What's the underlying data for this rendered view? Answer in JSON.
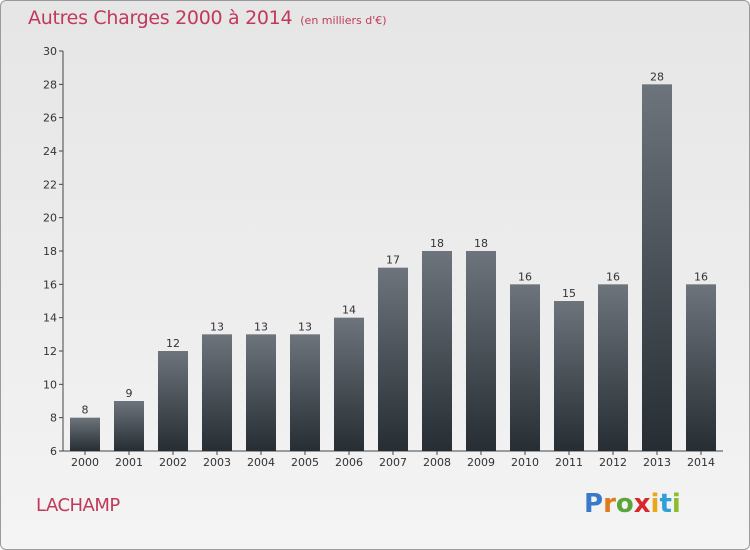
{
  "title": "Autres Charges 2000 à 2014",
  "subtitle": "(en milliers d'€)",
  "place_name": "LACHAMP",
  "logo": {
    "letters": [
      "P",
      "r",
      "o",
      "x",
      "i",
      "t",
      "i"
    ],
    "colors": [
      "#3a78c9",
      "#e07a1f",
      "#5aa53a",
      "#d8282a",
      "#e8a81a",
      "#2f9fd8",
      "#8bbd2f"
    ]
  },
  "colors": {
    "title": "#c0395a",
    "bar_top": "#6d747b",
    "bar_bottom": "#262d33"
  },
  "chart_data": {
    "type": "bar",
    "categories": [
      "2000",
      "2001",
      "2002",
      "2003",
      "2004",
      "2005",
      "2006",
      "2007",
      "2008",
      "2009",
      "2010",
      "2011",
      "2012",
      "2013",
      "2014"
    ],
    "values": [
      8,
      9,
      12,
      13,
      13,
      13,
      14,
      17,
      18,
      18,
      16,
      15,
      16,
      28,
      16
    ],
    "ylim": [
      6,
      30
    ],
    "yticks": [
      6,
      8,
      10,
      12,
      14,
      16,
      18,
      20,
      22,
      24,
      26,
      28,
      30
    ],
    "grid": false,
    "legend": "none"
  }
}
